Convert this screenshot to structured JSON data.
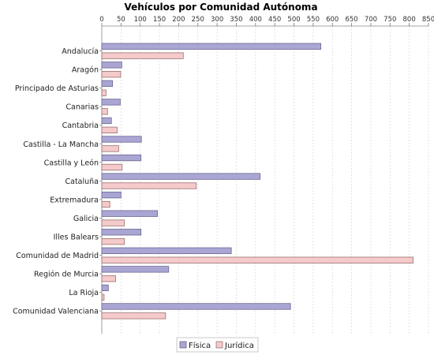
{
  "chart_data": {
    "type": "bar",
    "orientation": "horizontal",
    "title": "Vehículos por Comunidad Autónoma",
    "xlim": [
      0,
      850
    ],
    "x_ticks": [
      0,
      50,
      100,
      150,
      200,
      250,
      300,
      350,
      400,
      450,
      500,
      550,
      600,
      650,
      700,
      750,
      800,
      850
    ],
    "x_axis_position": "top",
    "grid": "vertical dashed",
    "legend_position": "bottom-center",
    "categories": [
      "Andalucía",
      "Aragón",
      "Principado de Asturias",
      "Canarias",
      "Cantabria",
      "Castilla - La Mancha",
      "Castilla y León",
      "Cataluña",
      "Extremadura",
      "Galicia",
      "Illes Balears",
      "Comunidad de Madrid",
      "Región de Murcia",
      "La Rioja",
      "Comunidad Valenciana"
    ],
    "series": [
      {
        "name": "Física",
        "color": "#aaa6d4",
        "values": [
          570,
          52,
          28,
          48,
          25,
          103,
          102,
          412,
          50,
          145,
          102,
          337,
          174,
          17,
          491
        ]
      },
      {
        "name": "Jurídica",
        "color": "#f5caca",
        "values": [
          212,
          49,
          11,
          15,
          40,
          44,
          53,
          246,
          21,
          59,
          59,
          810,
          36,
          6,
          166
        ]
      }
    ]
  }
}
